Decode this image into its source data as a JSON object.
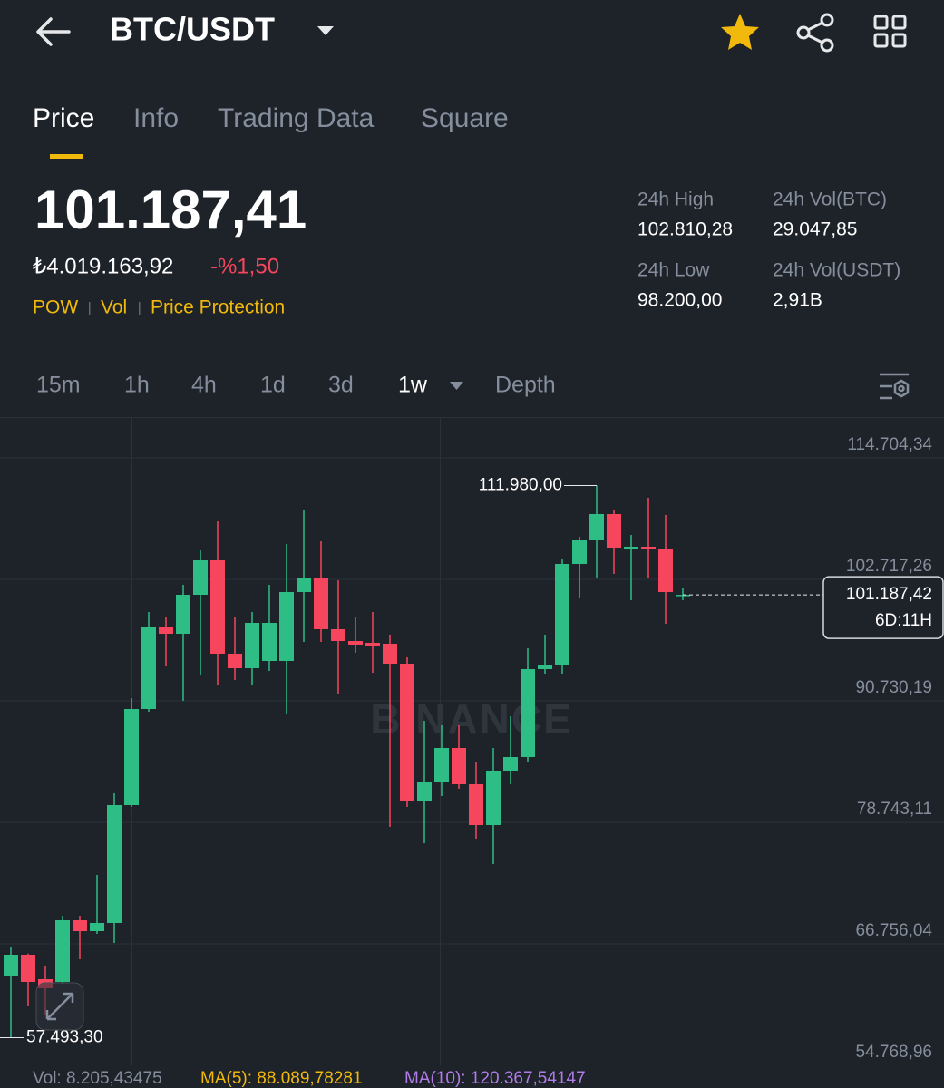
{
  "header": {
    "title": "BTC/USDT"
  },
  "tabs": [
    "Price",
    "Info",
    "Trading Data",
    "Square"
  ],
  "price": {
    "last": "101.187,41",
    "fiat": "₺4.019.163,92",
    "change": "-%1,50"
  },
  "tags": [
    "POW",
    "Vol",
    "Price Protection"
  ],
  "stats": [
    {
      "label": "24h High",
      "value": "102.810,28"
    },
    {
      "label": "24h Vol(BTC)",
      "value": "29.047,85"
    },
    {
      "label": "24h Low",
      "value": "98.200,00"
    },
    {
      "label": "24h Vol(USDT)",
      "value": "2,91B"
    }
  ],
  "intervals": [
    "15m",
    "1h",
    "4h",
    "1d",
    "3d",
    "1w",
    "Depth"
  ],
  "chart_data": {
    "type": "candlestick",
    "watermark": "BINANCE",
    "up_color": "#2ebd85",
    "down_color": "#f6465d",
    "ylim": [
      54768.96,
      118640
    ],
    "yticks": [
      {
        "value": 114704.34,
        "label": "114.704,34"
      },
      {
        "value": 102717.26,
        "label": "102.717,26"
      },
      {
        "value": 90730.19,
        "label": "90.730,19"
      },
      {
        "value": 78743.11,
        "label": "78.743,11"
      },
      {
        "value": 66756.04,
        "label": "66.756,04"
      },
      {
        "value": 54768.96,
        "label": "54.768,96"
      }
    ],
    "grid": true,
    "open": [
      63536,
      65683,
      63267,
      62999,
      69082,
      68008,
      68814,
      80443,
      89925,
      97976,
      97350,
      101196,
      104596,
      95382,
      93950,
      94666,
      94666,
      101465,
      102806,
      97797,
      96634,
      96455,
      96366,
      94398,
      80890,
      82679,
      86078,
      82500,
      78475,
      83842,
      85184,
      93861,
      94308,
      104238,
      106564,
      109158,
      105758,
      105937,
      105758,
      101100
    ],
    "high": [
      66398,
      65800,
      64609,
      69529,
      69529,
      73555,
      81606,
      90998,
      99497,
      99049,
      102180,
      105580,
      108442,
      99049,
      99497,
      102180,
      106206,
      109605,
      106474,
      102628,
      99049,
      99497,
      97260,
      95024,
      88762,
      88315,
      88315,
      84737,
      86078,
      89209,
      95918,
      97260,
      104685,
      106921,
      111980,
      109605,
      107100,
      110768,
      109068,
      101912
    ],
    "low": [
      57493.3,
      60584,
      59689,
      62820,
      65235,
      67740,
      66846,
      80264,
      89657,
      94129,
      90730,
      93235,
      92340,
      92788,
      92340,
      93682,
      89388,
      96545,
      96545,
      91446,
      95471,
      93503,
      78296,
      80264,
      76686,
      81337,
      82053,
      77133,
      74628,
      82500,
      84737,
      93414,
      93414,
      100838,
      102806,
      103254,
      100660,
      102806,
      98334,
      100660
    ],
    "close": [
      65683,
      62999,
      62373,
      69082,
      68008,
      68814,
      80443,
      89925,
      97976,
      97350,
      101196,
      104596,
      95382,
      93950,
      98423,
      98423,
      101465,
      102806,
      97797,
      96634,
      96276,
      96187,
      94398,
      80890,
      82679,
      86078,
      82500,
      78475,
      83842,
      85184,
      93861,
      94308,
      104238,
      106564,
      109158,
      105848,
      105937,
      105758,
      101465,
      101187.42
    ],
    "high_label": {
      "value": 111980,
      "label": "111.980,00"
    },
    "low_label": {
      "value": 57493.3,
      "label": "57.493,30"
    },
    "current": {
      "value": 101187.42,
      "label": "101.187,42",
      "countdown": "6D:11H"
    },
    "footer": [
      "Vol: 8.205,43475",
      "MA(5): 88.089,78281",
      "MA(10): 120.367,54147"
    ]
  }
}
